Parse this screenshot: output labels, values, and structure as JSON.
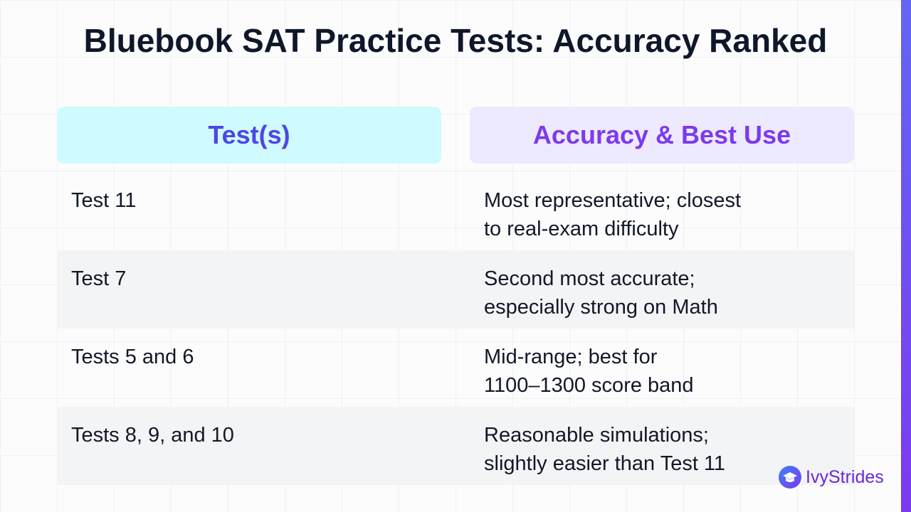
{
  "title": "Bluebook SAT Practice Tests: Accuracy Ranked",
  "table": {
    "headers": [
      "Test(s)",
      "Accuracy & Best Use"
    ],
    "rows": [
      [
        "Test 11",
        [
          "Most representative; closest",
          "to real-exam difficulty"
        ]
      ],
      [
        "Test 7",
        [
          "Second most accurate;",
          "especially strong on Math"
        ]
      ],
      [
        "Tests 5 and 6",
        [
          "Mid-range; best for",
          "1100–1300 score band"
        ]
      ],
      [
        "Tests 8, 9, and 10",
        [
          "Reasonable simulations;",
          "slightly easier than Test 11"
        ]
      ]
    ]
  },
  "logo": "IvyStrides"
}
